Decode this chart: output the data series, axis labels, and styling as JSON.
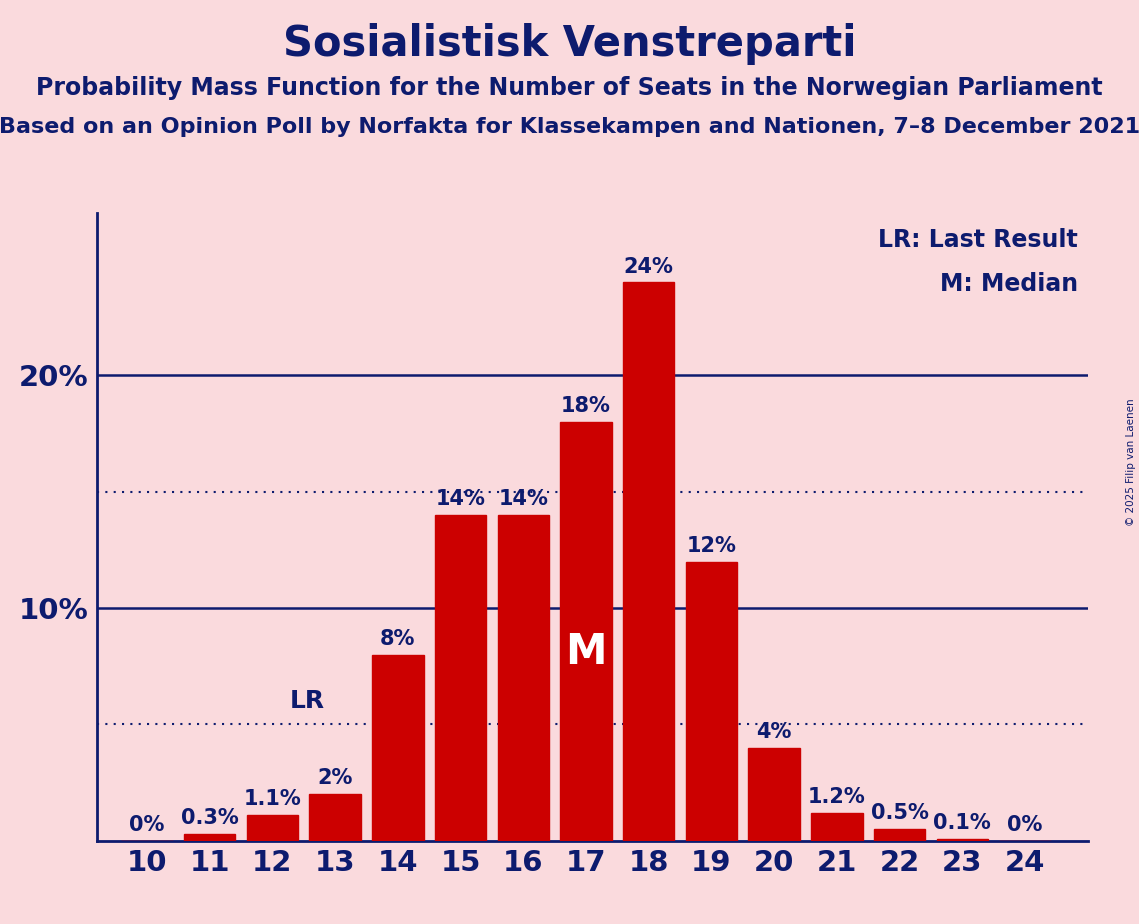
{
  "title": "Sosialistisk Venstreparti",
  "subtitle1": "Probability Mass Function for the Number of Seats in the Norwegian Parliament",
  "subtitle2": "Based on an Opinion Poll by Norfakta for Klassekampen and Nationen, 7–8 December 2021",
  "copyright": "© 2025 Filip van Laenen",
  "legend_lr": "LR: Last Result",
  "legend_m": "M: Median",
  "seats": [
    10,
    11,
    12,
    13,
    14,
    15,
    16,
    17,
    18,
    19,
    20,
    21,
    22,
    23,
    24
  ],
  "probabilities": [
    0.0,
    0.3,
    1.1,
    2.0,
    8.0,
    14.0,
    14.0,
    18.0,
    24.0,
    12.0,
    4.0,
    1.2,
    0.5,
    0.1,
    0.0
  ],
  "bar_color": "#CC0000",
  "background_color": "#FADADD",
  "text_color": "#0D1B6E",
  "solid_line_color": "#0D1B6E",
  "dotted_line_color": "#0D1B6E",
  "median_seat": 17,
  "last_result_seat": 13,
  "dotted_lines": [
    5.0,
    15.0
  ],
  "solid_lines": [
    10.0,
    20.0
  ],
  "ylim": [
    0,
    27
  ],
  "bar_label_format": [
    "0%",
    "0.3%",
    "1.1%",
    "2%",
    "8%",
    "14%",
    "14%",
    "18%",
    "24%",
    "12%",
    "4%",
    "1.2%",
    "0.5%",
    "0.1%",
    "0%"
  ],
  "title_fontsize": 30,
  "subtitle1_fontsize": 17,
  "subtitle2_fontsize": 16,
  "label_fontsize": 15,
  "tick_fontsize": 21,
  "legend_fontsize": 17,
  "lr_fontsize": 18,
  "m_fontsize": 30
}
